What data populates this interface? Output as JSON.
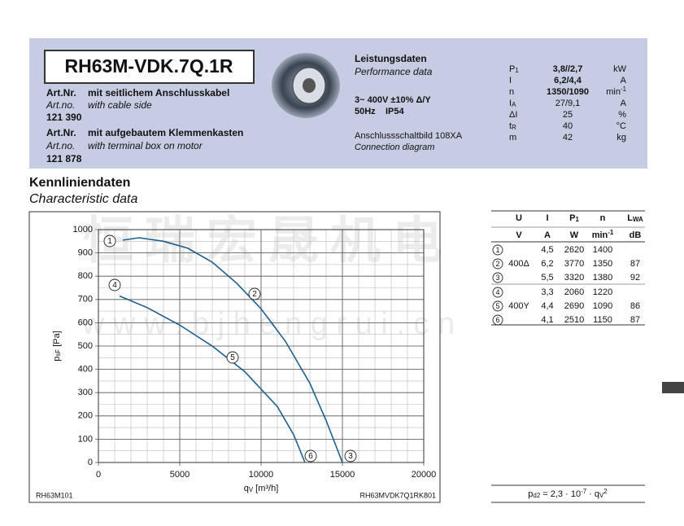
{
  "header": {
    "model": "RH63M-VDK.7Q.1R",
    "variants": [
      {
        "label_de": "Art.Nr.",
        "text_de": "mit seitlichem Anschlusskabel",
        "label_en": "Art.no.",
        "text_en": "with cable side",
        "number": "121 390"
      },
      {
        "label_de": "Art.Nr.",
        "text_de": "mit aufgebautem Klemmenkasten",
        "label_en": "Art.no.",
        "text_en": "with terminal box on motor",
        "number": "121 878"
      }
    ],
    "performance": {
      "title_de": "Leistungsdaten",
      "title_en": "Performance data",
      "voltage": "3~ 400V ±10% Δ/Y",
      "frequency": "50Hz",
      "protection": "IP54",
      "diagram_de": "Anschlussschaltbild 108XA",
      "diagram_en": "Connection diagram"
    },
    "specs": [
      {
        "symbol": [
          {
            "text": "P"
          },
          {
            "sub": "1"
          }
        ],
        "value": "3,8//2,7",
        "unit": [
          {
            "text": "kW"
          }
        ]
      },
      {
        "symbol": [
          {
            "text": "I"
          }
        ],
        "value": "6,2/4,4",
        "unit": [
          {
            "text": "A"
          }
        ]
      },
      {
        "symbol": [
          {
            "text": "n"
          }
        ],
        "value": "1350/1090",
        "unit": [
          {
            "text": "min"
          },
          {
            "sup": "-1"
          }
        ]
      },
      {
        "symbol": [
          {
            "text": "I"
          },
          {
            "sub": "A"
          }
        ],
        "value": "27/9,1",
        "unit": [
          {
            "text": "A"
          }
        ]
      },
      {
        "symbol": [
          {
            "text": "ΔI"
          }
        ],
        "value": "25",
        "unit": [
          {
            "text": "%"
          }
        ]
      },
      {
        "symbol": [
          {
            "text": "t"
          },
          {
            "sub": "R"
          }
        ],
        "value": "40",
        "unit": [
          {
            "text": "°C"
          }
        ]
      },
      {
        "symbol": [
          {
            "text": "m"
          }
        ],
        "value": "42",
        "unit": [
          {
            "text": "kg"
          }
        ]
      }
    ]
  },
  "section": {
    "title_de": "Kennliniendaten",
    "title_en": "Characteristic data"
  },
  "watermark": {
    "text": "恒瑞宏晟机电",
    "url": "w w w . b j h e n g r u i . c n"
  },
  "chart_data": {
    "type": "line",
    "xlabel": [
      {
        "text": "q"
      },
      {
        "sub": "V"
      },
      {
        "text": " [m³/h]"
      }
    ],
    "ylabel": [
      {
        "text": "p"
      },
      {
        "sub": "sF"
      },
      {
        "text": " [Pa]"
      }
    ],
    "xlim": [
      0,
      20000
    ],
    "xticks": [
      0,
      5000,
      10000,
      15000,
      20000
    ],
    "ylim": [
      0,
      1000
    ],
    "yticks": [
      0,
      100,
      200,
      300,
      400,
      500,
      600,
      700,
      800,
      900,
      1000
    ],
    "grid": true,
    "minor_grid": {
      "x": 1000,
      "y": 50
    },
    "series": [
      {
        "color": "#1b5f8c",
        "x": [
          1500,
          2500,
          4000,
          5500,
          7000,
          8500,
          10000,
          11500,
          13000,
          14000,
          15000
        ],
        "values": [
          955,
          965,
          950,
          920,
          860,
          770,
          660,
          520,
          340,
          180,
          0
        ]
      },
      {
        "color": "#1b5f8c",
        "x": [
          1300,
          3000,
          5000,
          7000,
          9000,
          11000,
          12000,
          12700
        ],
        "values": [
          715,
          665,
          590,
          500,
          390,
          240,
          120,
          0
        ]
      }
    ],
    "curve_labels": [
      "1",
      "2",
      "3",
      "4",
      "5",
      "6"
    ],
    "code_left": "RH63M101",
    "code_right": "RH63MVDK7Q1RK801"
  },
  "table": {
    "header": [
      [
        {
          "text": "U"
        }
      ],
      [
        {
          "text": "I"
        }
      ],
      [
        {
          "text": "P"
        },
        {
          "sub": "1"
        }
      ],
      [
        {
          "text": "n"
        }
      ],
      [
        {
          "text": "L"
        },
        {
          "sub": "WA"
        }
      ]
    ],
    "units": [
      [
        {
          "text": "V"
        }
      ],
      [
        {
          "text": "A"
        }
      ],
      [
        {
          "text": "W"
        }
      ],
      [
        {
          "text": "min"
        },
        {
          "sup": "-1"
        }
      ],
      [
        {
          "text": "dB"
        }
      ]
    ],
    "rows": [
      [
        "1",
        null,
        "4,5",
        "2620",
        "1400",
        null
      ],
      [
        "2",
        "400Δ",
        "6,2",
        "3770",
        "1350",
        "87"
      ],
      [
        "3",
        null,
        "5,5",
        "3320",
        "1380",
        "92"
      ],
      [
        "4",
        null,
        "3,3",
        "2060",
        "1220",
        null
      ],
      [
        "5",
        "400Y",
        "4,4",
        "2690",
        "1090",
        "86"
      ],
      [
        "6",
        null,
        "4,1",
        "2510",
        "1150",
        "87"
      ]
    ]
  },
  "formula": [
    {
      "text": "p"
    },
    {
      "sub": "d2"
    },
    {
      "text": " = 2,3 · 10"
    },
    {
      "sup": "-7"
    },
    {
      "text": " · q"
    },
    {
      "sub": "V"
    },
    {
      "sup": "2"
    }
  ]
}
